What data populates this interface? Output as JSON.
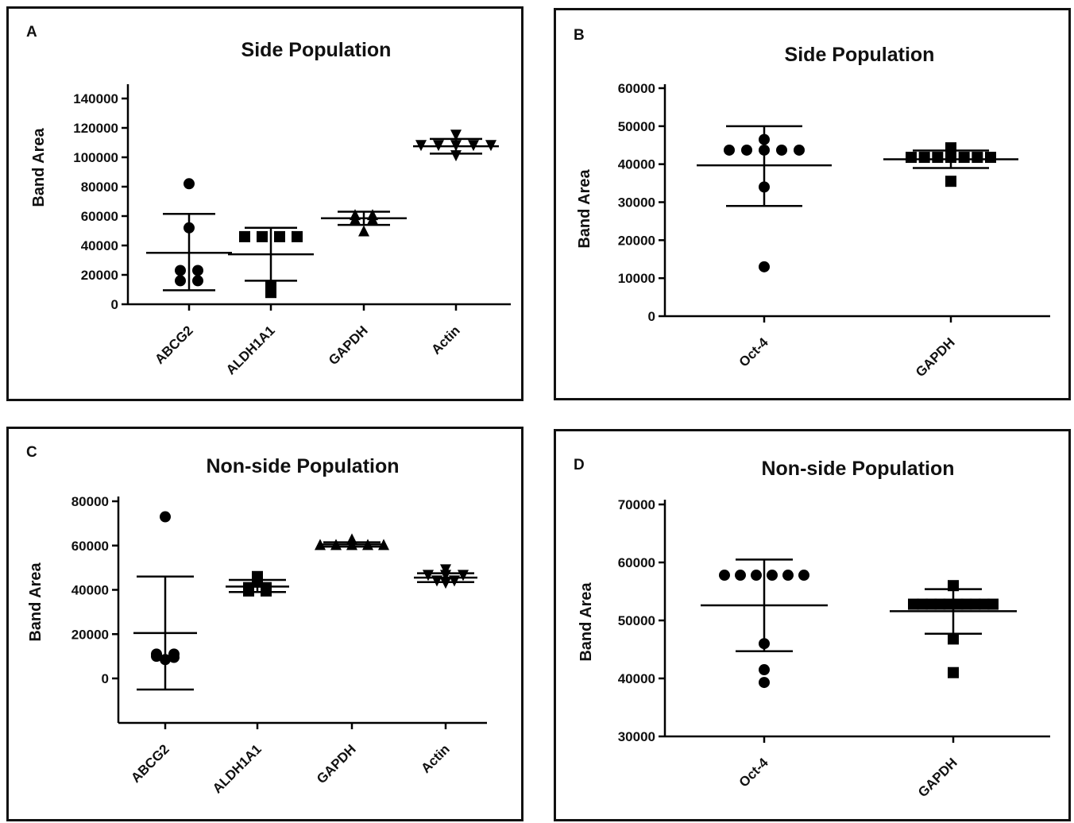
{
  "chart_data": [
    {
      "panel_label": "A",
      "type": "scatter",
      "title": "Side Population",
      "ylabel": "Band Area",
      "ylim": [
        0,
        140000
      ],
      "yticks": [
        "0",
        "20000",
        "40000",
        "60000",
        "80000",
        "100000",
        "120000",
        "140000"
      ],
      "categories": [
        "ABCG2",
        "ALDH1A1",
        "GAPDH",
        "Actin"
      ],
      "groups": [
        {
          "marker": "circle",
          "points": [
            82000,
            52000,
            23000,
            23000,
            16000,
            16000
          ],
          "mean": 35000,
          "sd_low": 9500,
          "sd_high": 61500
        },
        {
          "marker": "square",
          "points": [
            46000,
            46000,
            46000,
            46000,
            12000,
            8000
          ],
          "mean": 34000,
          "sd_low": 16000,
          "sd_high": 52000
        },
        {
          "marker": "triangle-up",
          "points": [
            61000,
            61000,
            58000,
            58000,
            50000
          ],
          "mean": 58500,
          "sd_low": 54000,
          "sd_high": 63000
        },
        {
          "marker": "triangle-down",
          "points": [
            115000,
            108000,
            108000,
            108000,
            108000,
            108000,
            101000
          ],
          "mean": 107500,
          "sd_low": 102500,
          "sd_high": 112500
        }
      ]
    },
    {
      "panel_label": "B",
      "type": "scatter",
      "title": "Side Population",
      "ylabel": "Band Area",
      "ylim": [
        0,
        60000
      ],
      "yticks": [
        "0",
        "10000",
        "20000",
        "30000",
        "40000",
        "50000",
        "60000"
      ],
      "categories": [
        "Oct-4",
        "GAPDH"
      ],
      "groups": [
        {
          "marker": "circle",
          "points": [
            46500,
            43700,
            43700,
            43700,
            43700,
            43700,
            34000,
            13000
          ],
          "mean": 39700,
          "sd_low": 29000,
          "sd_high": 50000
        },
        {
          "marker": "square",
          "points": [
            44300,
            41800,
            41800,
            41800,
            41800,
            41800,
            41800,
            41800,
            35500
          ],
          "mean": 41300,
          "sd_low": 39000,
          "sd_high": 43600
        }
      ]
    },
    {
      "panel_label": "C",
      "type": "scatter",
      "title": "Non-side Population",
      "ylabel": "Band Area",
      "ylim": [
        -20000,
        80000
      ],
      "yticks": [
        "0",
        "20000",
        "40000",
        "60000",
        "80000"
      ],
      "categories": [
        "ABCG2",
        "ALDH1A1",
        "GAPDH",
        "Actin"
      ],
      "groups": [
        {
          "marker": "circle",
          "points": [
            73000,
            11000,
            10000,
            8500,
            9500,
            11000
          ],
          "mean": 20500,
          "sd_low": -5000,
          "sd_high": 46000
        },
        {
          "marker": "square",
          "points": [
            46000,
            43500,
            41000,
            41000,
            39500,
            39500
          ],
          "mean": 41500,
          "sd_low": 39000,
          "sd_high": 44500
        },
        {
          "marker": "triangle-up",
          "points": [
            63000,
            60500,
            60500,
            60500,
            60500,
            60500
          ],
          "mean": 60500,
          "sd_low": 59500,
          "sd_high": 61500
        },
        {
          "marker": "triangle-down",
          "points": [
            49000,
            46500,
            46500,
            46500,
            44000,
            44000,
            43000
          ],
          "mean": 45500,
          "sd_low": 43500,
          "sd_high": 47500
        }
      ]
    },
    {
      "panel_label": "D",
      "type": "scatter",
      "title": "Non-side Population",
      "ylabel": "Band Area",
      "ylim": [
        30000,
        70000
      ],
      "yticks": [
        "30000",
        "40000",
        "50000",
        "60000",
        "70000"
      ],
      "categories": [
        "Oct-4",
        "GAPDH"
      ],
      "groups": [
        {
          "marker": "circle",
          "points": [
            57800,
            57800,
            57800,
            57800,
            57800,
            57800,
            46000,
            41500,
            39300
          ],
          "mean": 52600,
          "sd_low": 44700,
          "sd_high": 60500
        },
        {
          "marker": "square",
          "points": [
            56000,
            52800,
            52800,
            52800,
            52800,
            52800,
            52800,
            52800,
            52800,
            52800,
            52800,
            46800,
            41000
          ],
          "mean": 51600,
          "sd_low": 47700,
          "sd_high": 55400
        }
      ]
    }
  ]
}
